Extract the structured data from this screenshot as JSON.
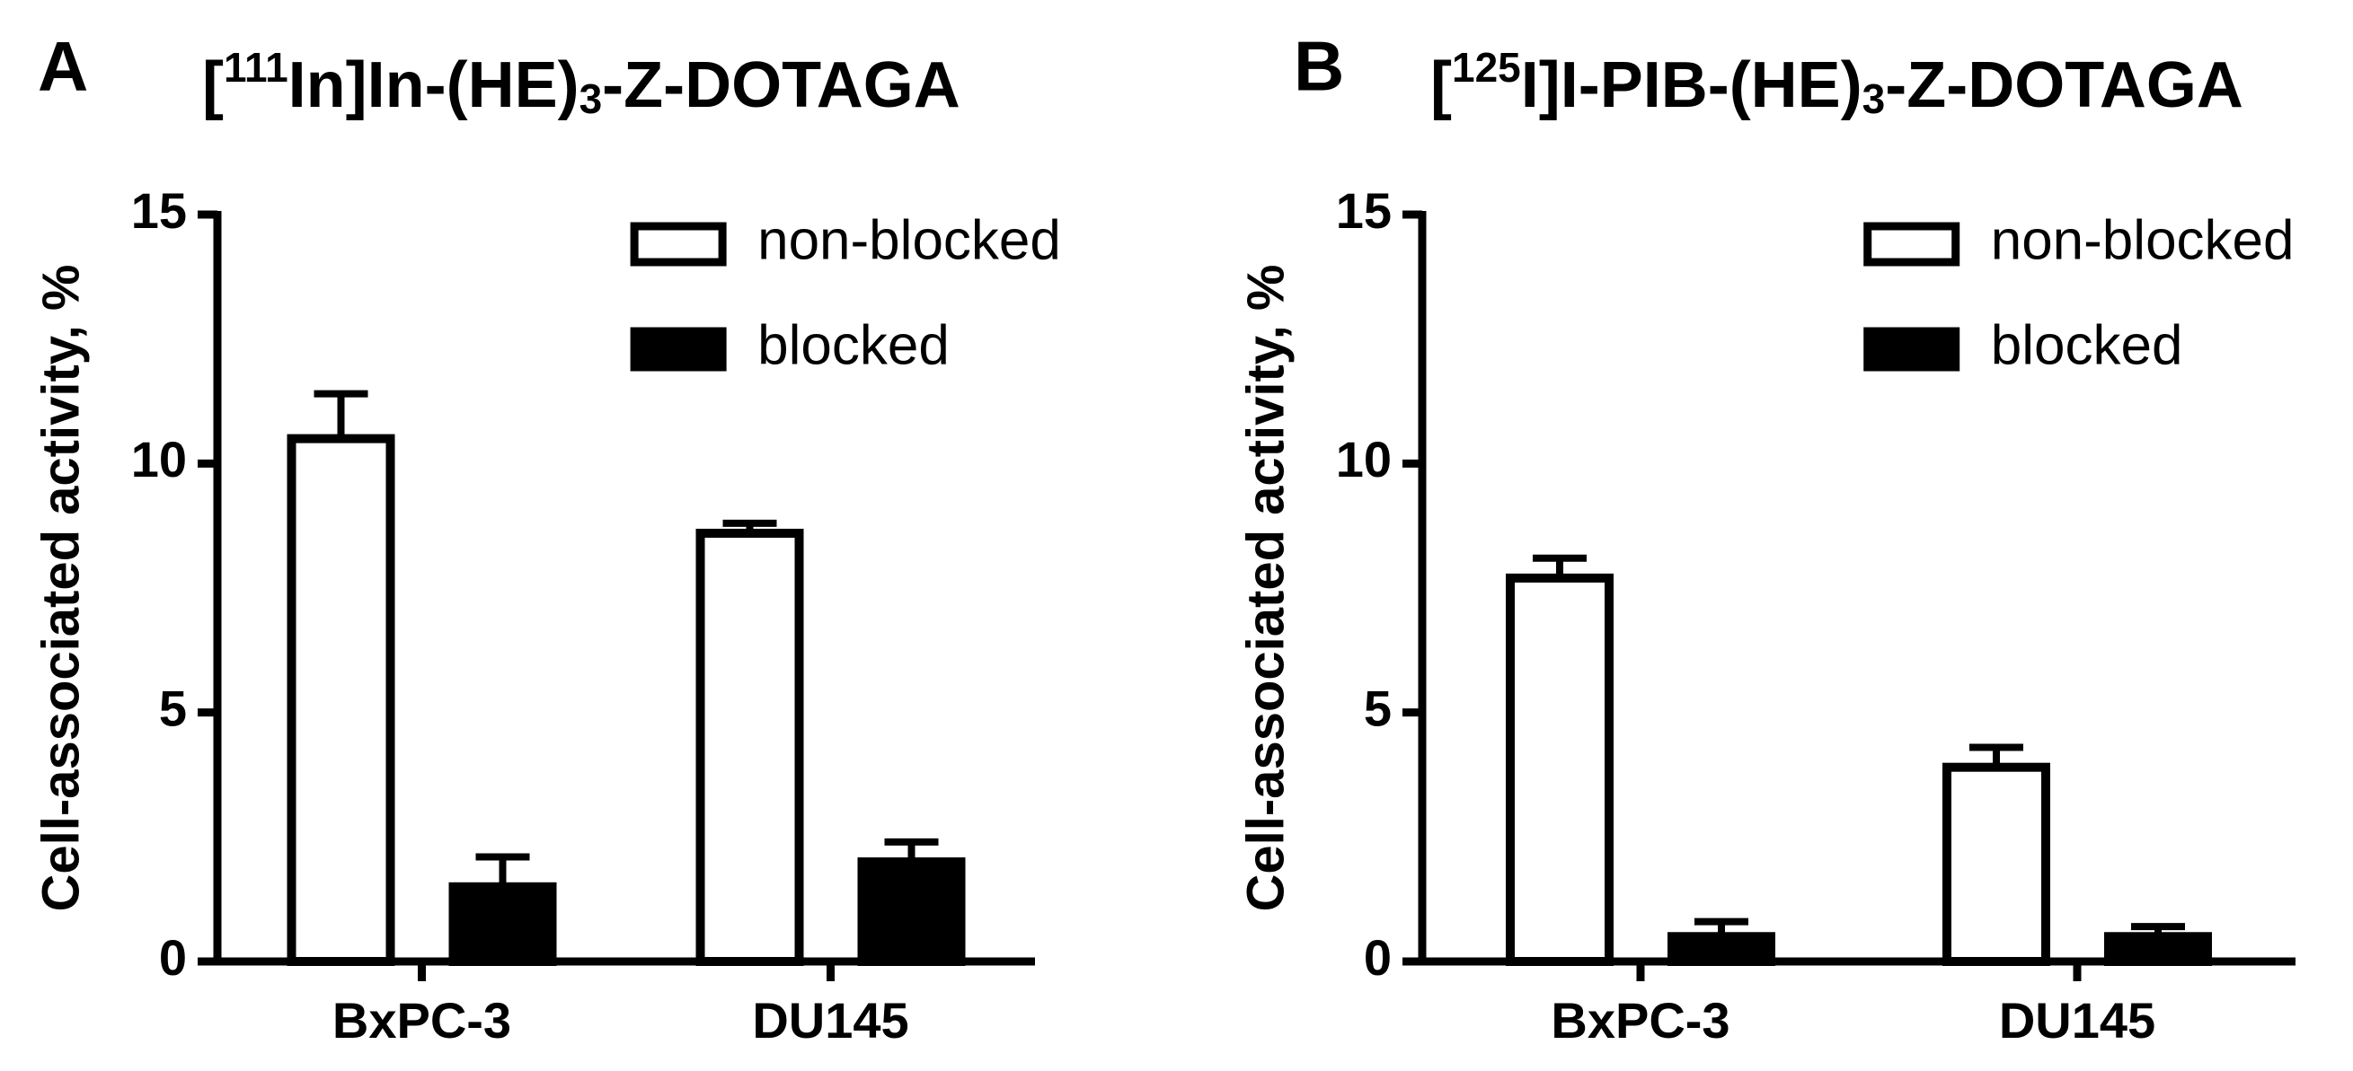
{
  "chart_data": [
    {
      "type": "bar",
      "panel": "A",
      "title": [
        "[",
        "111",
        "In]In-(HE)",
        "3",
        "-Z-DOTAGA"
      ],
      "y_label": "Cell-associated activity, %",
      "categories": [
        "BxPC-3",
        "DU145"
      ],
      "series": [
        {
          "name": "non-blocked",
          "color": "#ffffff",
          "values": [
            10.5,
            8.6
          ],
          "errors": [
            0.9,
            0.2
          ]
        },
        {
          "name": "blocked",
          "color": "#000000",
          "values": [
            1.5,
            2.0
          ],
          "errors": [
            0.6,
            0.4
          ]
        }
      ],
      "ylim": [
        0,
        15
      ],
      "yticks": [
        0,
        5,
        10,
        15
      ],
      "legend": "upper right"
    },
    {
      "type": "bar",
      "panel": "B",
      "title": [
        "[",
        "125",
        "I]I-PIB-(HE)",
        "3",
        "-Z-DOTAGA"
      ],
      "y_label": "Cell-associated activity, %",
      "categories": [
        "BxPC-3",
        "DU145"
      ],
      "series": [
        {
          "name": "non-blocked",
          "color": "#ffffff",
          "values": [
            7.7,
            3.9
          ],
          "errors": [
            0.4,
            0.4
          ]
        },
        {
          "name": "blocked",
          "color": "#000000",
          "values": [
            0.5,
            0.5
          ],
          "errors": [
            0.3,
            0.2
          ]
        }
      ],
      "ylim": [
        0,
        15
      ],
      "yticks": [
        0,
        5,
        10,
        15
      ],
      "legend": "upper right"
    }
  ]
}
